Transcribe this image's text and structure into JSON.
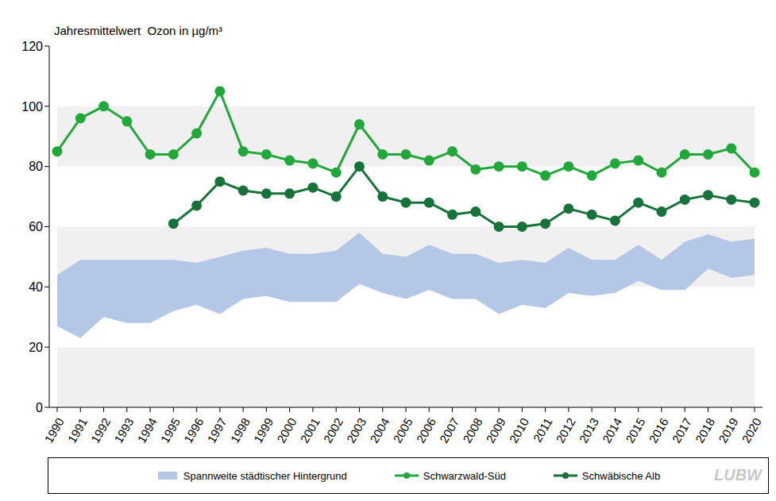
{
  "chart_data": {
    "type": "line",
    "title": "Jahresmittelwert  Ozon in µg/m³",
    "annotation": "LUBW",
    "categories": [
      "1990",
      "1991",
      "1992",
      "1993",
      "1994",
      "1995",
      "1996",
      "1997",
      "1998",
      "1999",
      "2000",
      "2001",
      "2002",
      "2003",
      "2004",
      "2005",
      "2006",
      "2007",
      "2008",
      "2009",
      "2010",
      "2011",
      "2012",
      "2013",
      "2014",
      "2015",
      "2016",
      "2017",
      "2018",
      "2019",
      "2020"
    ],
    "series": [
      {
        "name": "Spannweite städtischer Hintergrund",
        "type": "area",
        "color": "#b4c7e7",
        "low": [
          27,
          23,
          30,
          28,
          28,
          32,
          34,
          31,
          36,
          37,
          35,
          35,
          35,
          41,
          38,
          36,
          39,
          36,
          36,
          31,
          34,
          33,
          38,
          37,
          38,
          42,
          39,
          39,
          46,
          43,
          44
        ],
        "high": [
          44,
          49,
          49,
          49,
          49,
          49,
          48,
          50,
          52,
          53,
          51,
          51,
          52,
          58,
          51,
          50,
          54,
          51,
          51,
          48,
          49,
          48,
          53,
          49,
          49,
          54,
          49,
          55,
          57.5,
          55,
          56
        ]
      },
      {
        "name": "Schwarzwald-Süd",
        "type": "line",
        "color": "#22a83a",
        "marker": "circle",
        "values": [
          85,
          96,
          100,
          95,
          84,
          84,
          91,
          105,
          85,
          84,
          82,
          81,
          78,
          94,
          84,
          84,
          82,
          85,
          79,
          80,
          80,
          77,
          80,
          77,
          81,
          82,
          78,
          84,
          84,
          86,
          78
        ]
      },
      {
        "name": "Schwäbische Alb",
        "type": "line",
        "color": "#17733a",
        "marker": "circle",
        "values": [
          null,
          null,
          null,
          null,
          null,
          61,
          67,
          75,
          72,
          71,
          71,
          73,
          70,
          80,
          70,
          68,
          68,
          64,
          65,
          60,
          60,
          61,
          66,
          64,
          62,
          68,
          65,
          69,
          70.5,
          69,
          68
        ]
      }
    ],
    "ylim": [
      0,
      120
    ],
    "yticks": [
      0,
      20,
      40,
      60,
      80,
      100,
      120
    ],
    "grid": true,
    "legend": "bottom"
  }
}
